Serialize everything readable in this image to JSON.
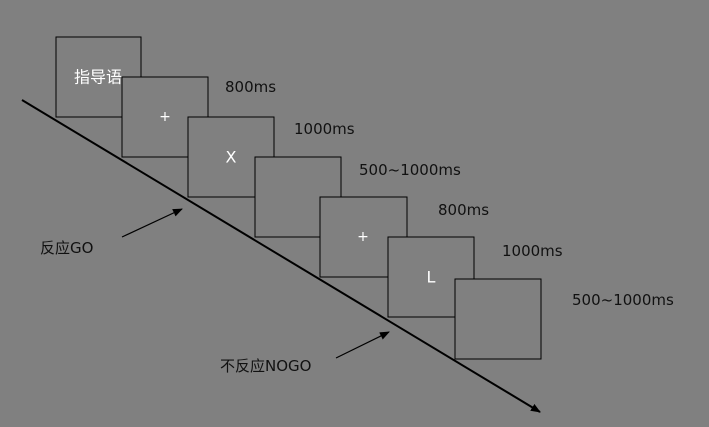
{
  "frames": [
    {
      "stimulus": "指导语",
      "duration": ""
    },
    {
      "stimulus": "+",
      "duration": "800ms"
    },
    {
      "stimulus": "X",
      "duration": "1000ms"
    },
    {
      "stimulus": "",
      "duration": "500~1000ms"
    },
    {
      "stimulus": "+",
      "duration": "800ms"
    },
    {
      "stimulus": "L",
      "duration": "1000ms"
    },
    {
      "stimulus": "",
      "duration": "500~1000ms"
    }
  ],
  "annotations": {
    "go": "反应GO",
    "nogo": "不反应NOGO"
  },
  "colors": {
    "background": "#808080",
    "stimulus_text": "#ffffff",
    "label_text": "#111111",
    "outline": "#000000"
  }
}
